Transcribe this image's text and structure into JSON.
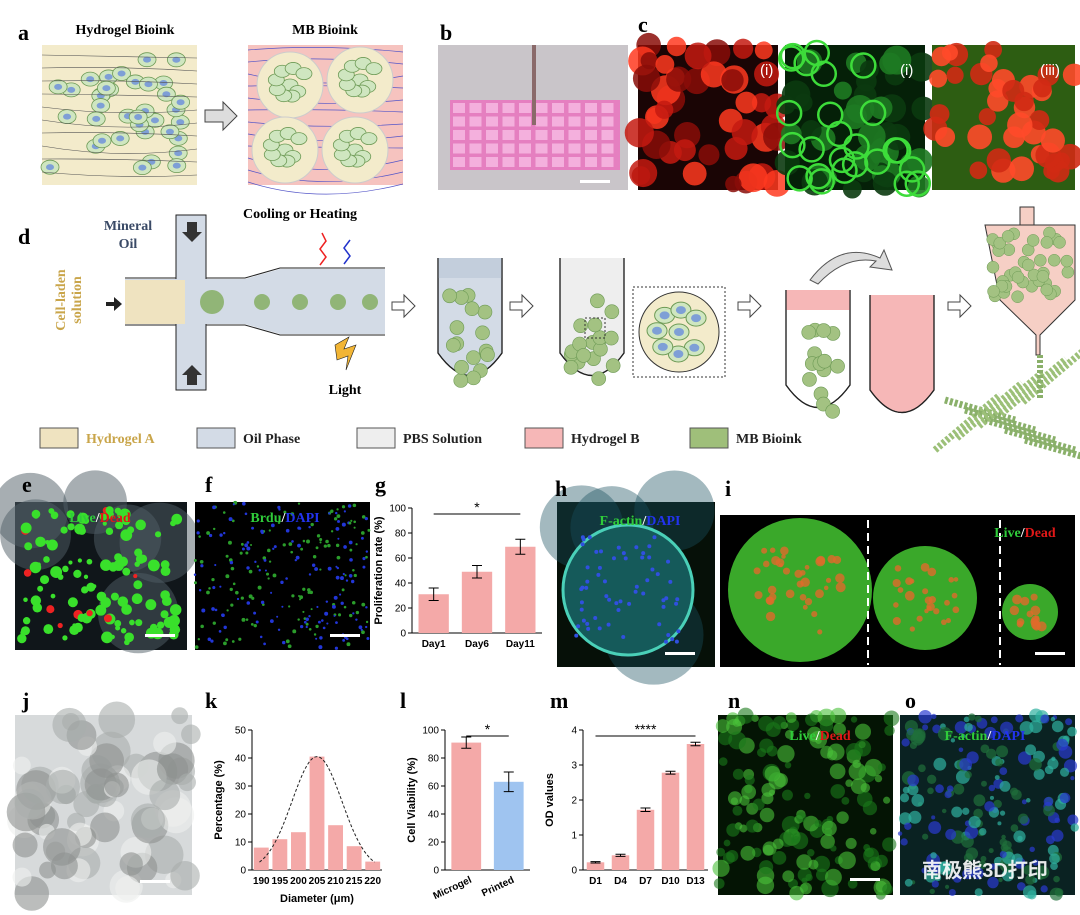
{
  "panel_labels": [
    "a",
    "b",
    "c",
    "d",
    "e",
    "f",
    "g",
    "h",
    "i",
    "j",
    "k",
    "l",
    "m",
    "n",
    "o"
  ],
  "panel_a": {
    "left_title": "Hydrogel Bioink",
    "right_title": "MB Bioink"
  },
  "panel_c": {
    "labels": [
      "(i)",
      "(i)",
      "(iii)"
    ]
  },
  "panel_d": {
    "oil": [
      "Mineral",
      "Oil"
    ],
    "condition": "Cooling or Heating",
    "solution": [
      "Cell-laden",
      "solution"
    ],
    "light": "Light"
  },
  "legend": [
    {
      "label": "Hydrogel A",
      "color": "#efe3c0"
    },
    {
      "label": "Oil Phase",
      "color": "#d3dbe6"
    },
    {
      "label": "PBS Solution",
      "color": "#eeeeee"
    },
    {
      "label": "Hydrogel B",
      "color": "#f6b7b7"
    },
    {
      "label": "MB Bioink",
      "color": "#9fbf7a"
    }
  ],
  "stains": {
    "e": [
      "Live",
      "/",
      "Dead"
    ],
    "f": [
      "Brdu",
      "/",
      "DAPI"
    ],
    "h": [
      "F-actin",
      "/",
      "DAPI"
    ],
    "i": [
      "Live",
      "/",
      "Dead"
    ],
    "n": [
      "Live",
      "/",
      "Dead"
    ],
    "o": [
      "F-actin",
      "/",
      "DAPI"
    ]
  },
  "watermark": "南极熊3D打印",
  "chart_data": [
    {
      "type": "bar",
      "ylabel": "Proliferation rate (%)",
      "categories": [
        "Day1",
        "Day6",
        "Day11"
      ],
      "values": [
        31,
        49,
        69
      ],
      "errors": [
        5,
        5,
        6
      ],
      "color": "#f4a9a8",
      "significance": "*",
      "ylim": [
        0,
        100
      ],
      "yticks": [
        0,
        20,
        40,
        60,
        80,
        100
      ]
    },
    {
      "type": "bar",
      "ylabel": "Percentage (%)",
      "xlabel": "Diameter (μm)",
      "categories": [
        "190",
        "195",
        "200",
        "205",
        "210",
        "215",
        "220"
      ],
      "values": [
        8,
        11,
        13.5,
        40.5,
        16,
        8.5,
        3
      ],
      "color": "#f4a9a8",
      "fit_curve": true,
      "ylim": [
        0,
        50
      ],
      "yticks": [
        0,
        10,
        20,
        30,
        40,
        50
      ]
    },
    {
      "type": "bar",
      "ylabel": "Cell Viability (%)",
      "categories": [
        "Microgel",
        "Printed"
      ],
      "values": [
        91,
        63
      ],
      "errors": [
        4,
        7
      ],
      "colors": [
        "#f4a9a8",
        "#9fc4f0"
      ],
      "significance": "*",
      "ylim": [
        0,
        100
      ],
      "yticks": [
        0,
        20,
        40,
        60,
        80,
        100
      ]
    },
    {
      "type": "bar",
      "ylabel": "OD values",
      "categories": [
        "D1",
        "D4",
        "D7",
        "D10",
        "D13"
      ],
      "values": [
        0.22,
        0.42,
        1.72,
        2.78,
        3.6
      ],
      "errors": [
        0.02,
        0.03,
        0.05,
        0.04,
        0.05
      ],
      "color": "#f4a9a8",
      "significance": "****",
      "ylim": [
        0,
        4
      ],
      "yticks": [
        0,
        1,
        2,
        3,
        4
      ]
    }
  ]
}
